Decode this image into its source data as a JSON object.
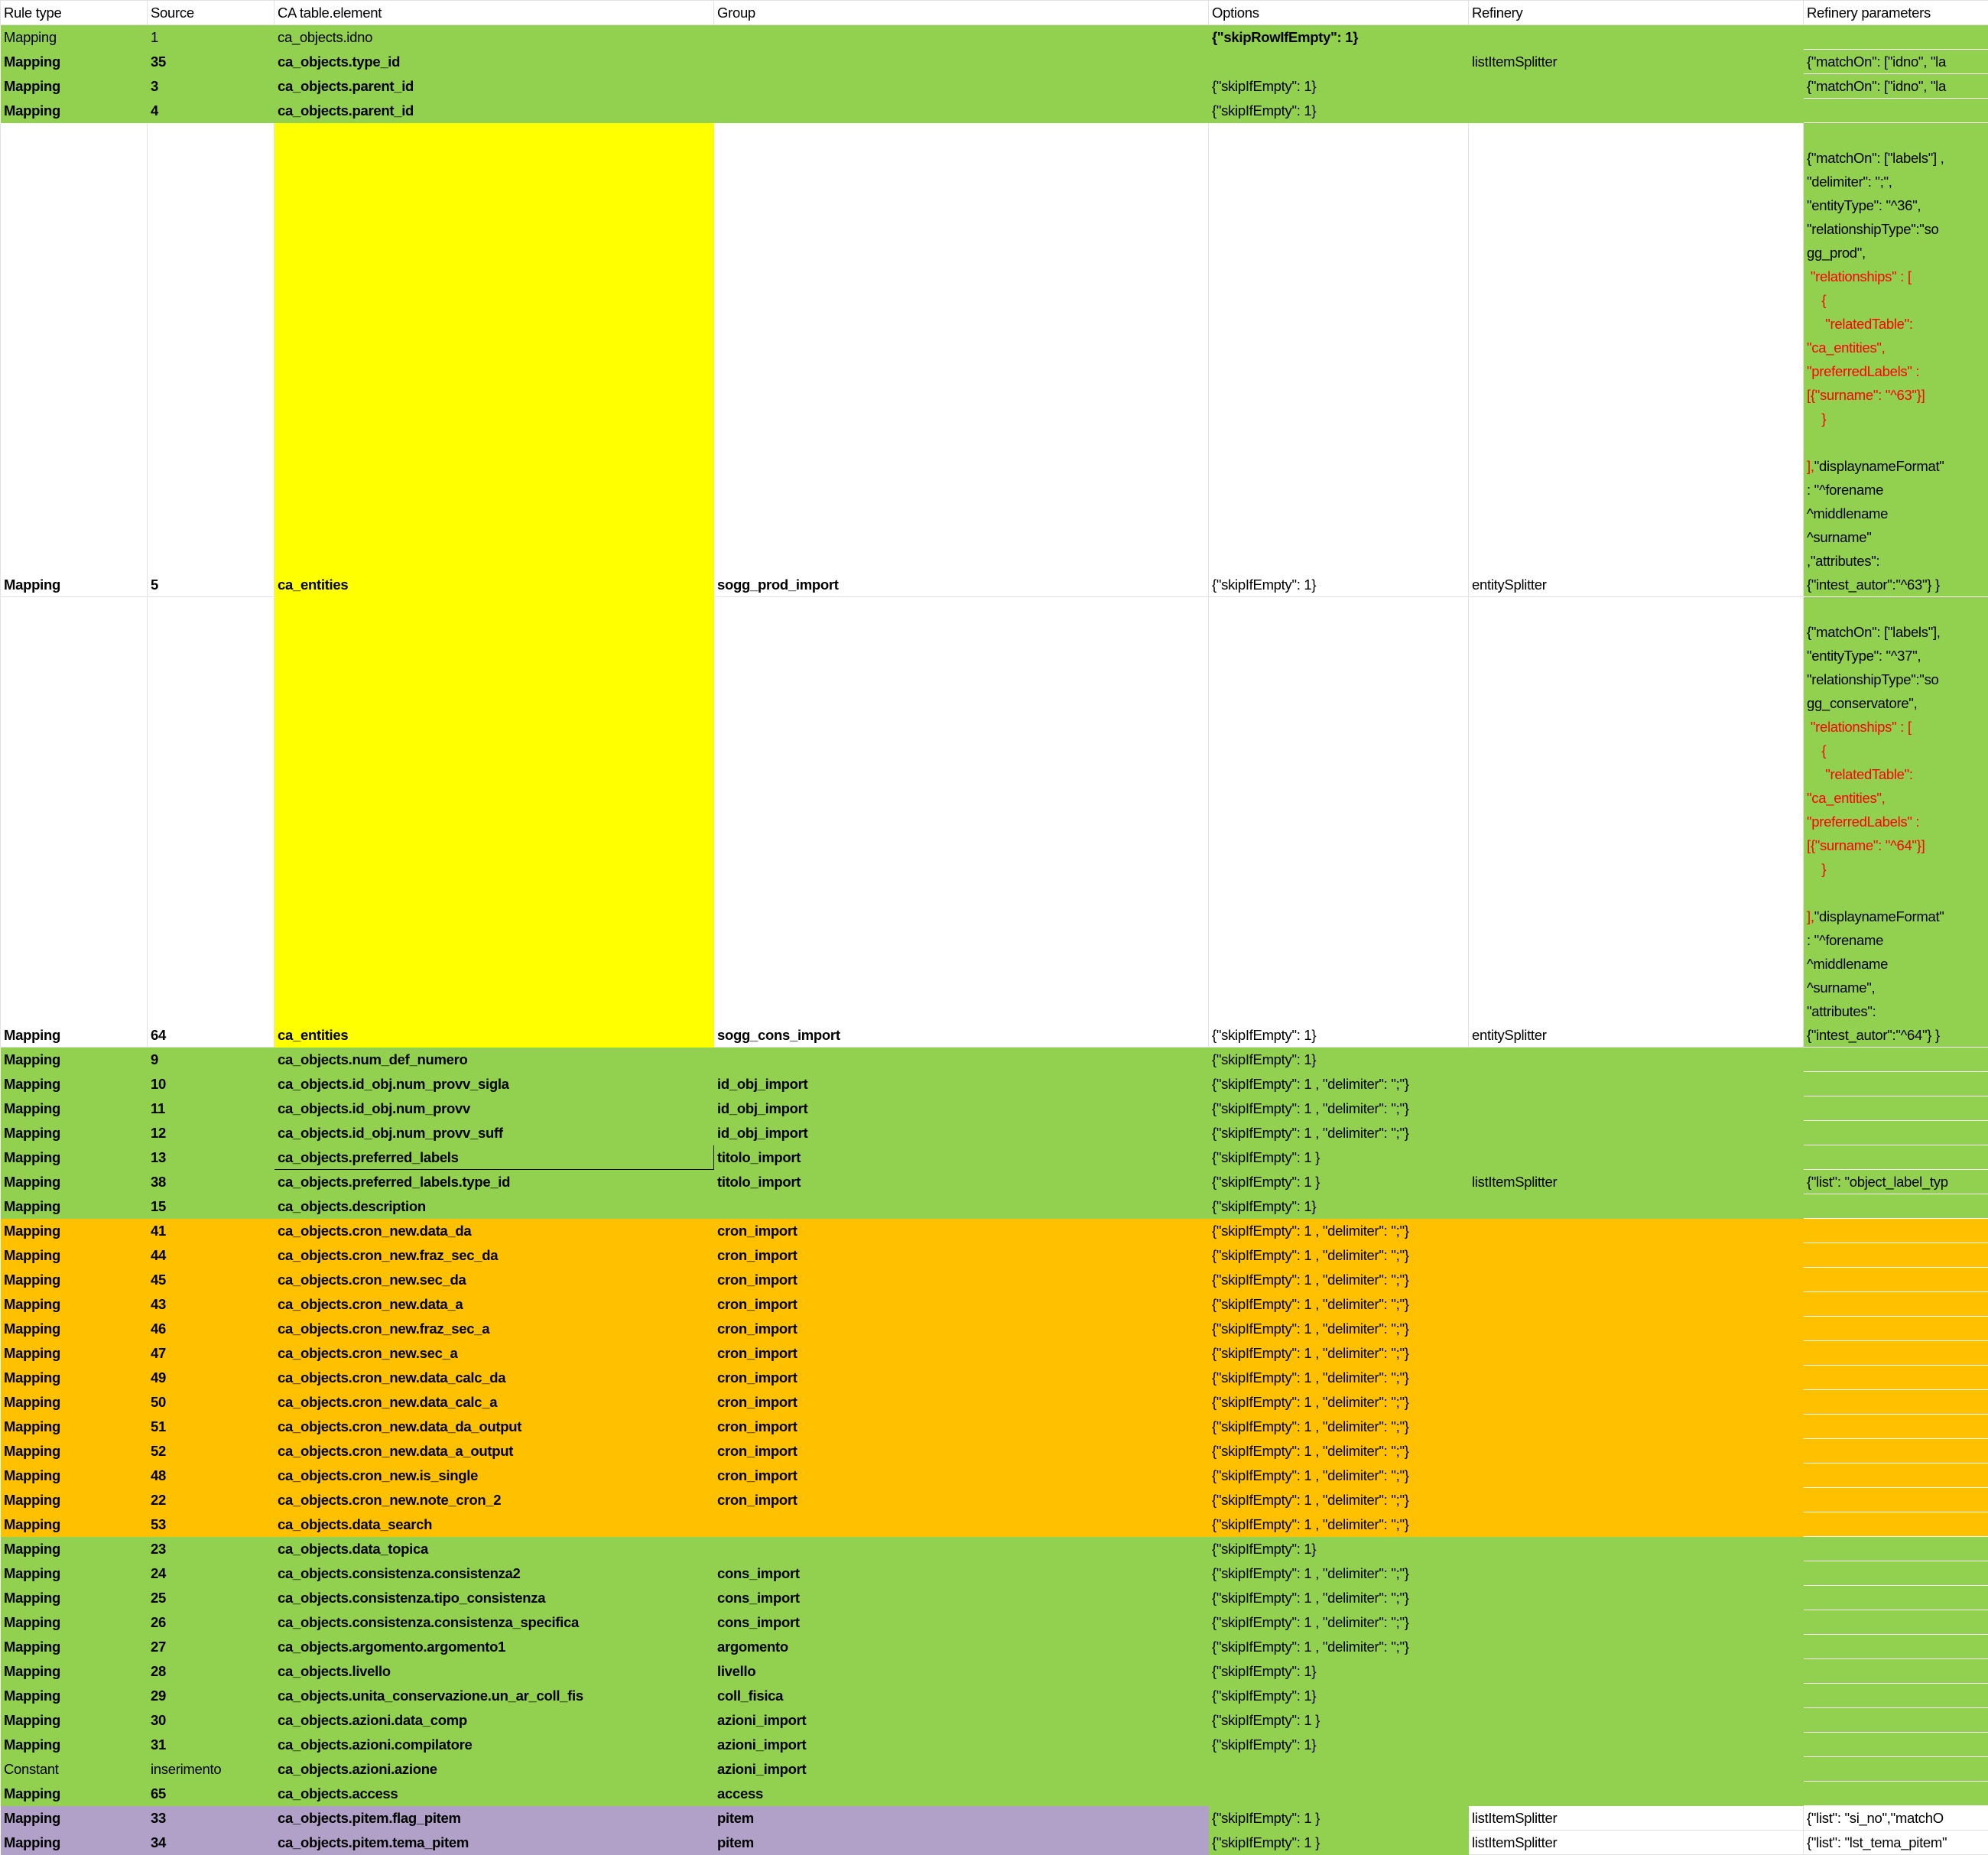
{
  "colors": {
    "green": "#92d050",
    "orange": "#ffc000",
    "yellow": "#ffff00",
    "purple": "#b1a0c7",
    "red_text": "#ff0000"
  },
  "headers": [
    "Rule type",
    "Source",
    "CA table.element",
    "Group",
    "Options",
    "Refinery",
    "Refinery parameters"
  ],
  "rows": [
    {
      "theme": "green",
      "bold": false,
      "opt_bold": true,
      "cells": [
        "Mapping",
        "1",
        "ca_objects.idno",
        "",
        "{\"skipRowIfEmpty\": 1}",
        "",
        ""
      ]
    },
    {
      "theme": "green",
      "bold": true,
      "cells": [
        "Mapping",
        "35",
        "ca_objects.type_id",
        "",
        "",
        "listItemSplitter",
        "{\"matchOn\": [\"idno\", \"la"
      ]
    },
    {
      "theme": "green",
      "bold": true,
      "cells": [
        "Mapping",
        "3",
        "ca_objects.parent_id",
        "",
        "{\"skipIfEmpty\": 1}",
        "",
        "{\"matchOn\": [\"idno\", \"la"
      ]
    },
    {
      "theme": "green",
      "bold": true,
      "cells": [
        "Mapping",
        "4",
        "ca_objects.parent_id",
        "",
        "{\"skipIfEmpty\": 1}",
        "",
        ""
      ]
    },
    {
      "theme": "tall",
      "bold": true,
      "cells": [
        "Mapping",
        "5",
        "ca_entities",
        "sogg_prod_import",
        "{\"skipIfEmpty\": 1}",
        "entitySplitter",
        ""
      ],
      "param_lines": [
        [
          [
            "{\"matchOn\": [\"labels\"] ,",
            ""
          ]
        ],
        [
          [
            "\"delimiter\": \";\",",
            ""
          ]
        ],
        [
          [
            "\"entityType\": \"^36\",",
            ""
          ]
        ],
        [
          [
            "\"relationshipType\":\"so",
            ""
          ]
        ],
        [
          [
            "gg_prod\",",
            ""
          ]
        ],
        [
          [
            " \"relationships\" : [",
            "red"
          ]
        ],
        [
          [
            "    {",
            "red"
          ]
        ],
        [
          [
            "     \"relatedTable\":",
            "red"
          ]
        ],
        [
          [
            "\"ca_entities\",",
            "red"
          ]
        ],
        [
          [
            "\"preferredLabels\" :",
            "red"
          ]
        ],
        [
          [
            "[{\"surname\": \"^63\"}]",
            "red"
          ]
        ],
        [
          [
            "    }",
            "red"
          ]
        ],
        [
          [
            "",
            ""
          ]
        ],
        [
          [
            "],",
            "red"
          ],
          [
            "\"displaynameFormat\"",
            ""
          ]
        ],
        [
          [
            ": \"^forename",
            ""
          ]
        ],
        [
          [
            "^middlename",
            ""
          ]
        ],
        [
          [
            "^surname\"",
            ""
          ]
        ],
        [
          [
            ",\"attributes\":",
            ""
          ]
        ],
        [
          [
            "{\"intest_autor\":\"^63\"} }",
            ""
          ]
        ]
      ]
    },
    {
      "theme": "tall",
      "bold": true,
      "cells": [
        "Mapping",
        "64",
        "ca_entities",
        "sogg_cons_import",
        "{\"skipIfEmpty\": 1}",
        "entitySplitter",
        ""
      ],
      "param_lines": [
        [
          [
            "{\"matchOn\": [\"labels\"],",
            ""
          ]
        ],
        [
          [
            "\"entityType\": \"^37\",",
            ""
          ]
        ],
        [
          [
            "\"relationshipType\":\"so",
            ""
          ]
        ],
        [
          [
            "gg_conservatore\",",
            ""
          ]
        ],
        [
          [
            " \"relationships\" : [",
            "red"
          ]
        ],
        [
          [
            "    {",
            "red"
          ]
        ],
        [
          [
            "     \"relatedTable\":",
            "red"
          ]
        ],
        [
          [
            "\"ca_entities\",",
            "red"
          ]
        ],
        [
          [
            "\"preferredLabels\" :",
            "red"
          ]
        ],
        [
          [
            "[{\"surname\": \"^64\"}]",
            "red"
          ]
        ],
        [
          [
            "    }",
            "red"
          ]
        ],
        [
          [
            "",
            ""
          ]
        ],
        [
          [
            "],",
            "red"
          ],
          [
            "\"displaynameFormat\"",
            ""
          ]
        ],
        [
          [
            ": \"^forename",
            ""
          ]
        ],
        [
          [
            "^middlename",
            ""
          ]
        ],
        [
          [
            "^surname\",",
            ""
          ]
        ],
        [
          [
            "\"attributes\":",
            ""
          ]
        ],
        [
          [
            "{\"intest_autor\":\"^64\"} }",
            ""
          ]
        ]
      ]
    },
    {
      "theme": "green",
      "bold": true,
      "cells": [
        "Mapping",
        "9",
        "ca_objects.num_def_numero",
        "",
        "{\"skipIfEmpty\": 1}",
        "",
        ""
      ]
    },
    {
      "theme": "green",
      "bold": true,
      "cells": [
        "Mapping",
        "10",
        "ca_objects.id_obj.num_provv_sigla",
        "id_obj_import",
        "{\"skipIfEmpty\": 1 , \"delimiter\": \";\"}",
        "",
        ""
      ]
    },
    {
      "theme": "green",
      "bold": true,
      "cells": [
        "Mapping",
        "11",
        "ca_objects.id_obj.num_provv",
        "id_obj_import",
        "{\"skipIfEmpty\": 1 , \"delimiter\": \";\"}",
        "",
        ""
      ]
    },
    {
      "theme": "green",
      "bold": true,
      "cells": [
        "Mapping",
        "12",
        "ca_objects.id_obj.num_provv_suff",
        "id_obj_import",
        "{\"skipIfEmpty\": 1 , \"delimiter\": \";\"}",
        "",
        ""
      ]
    },
    {
      "theme": "green",
      "bold": true,
      "selected_cell": 2,
      "cells": [
        "Mapping",
        "13",
        "ca_objects.preferred_labels",
        "titolo_import",
        "{\"skipIfEmpty\": 1 }",
        "",
        ""
      ]
    },
    {
      "theme": "green",
      "bold": true,
      "cells": [
        "Mapping",
        "38",
        "ca_objects.preferred_labels.type_id",
        "titolo_import",
        "{\"skipIfEmpty\": 1 }",
        "listItemSplitter",
        "{\"list\": \"object_label_typ"
      ]
    },
    {
      "theme": "green",
      "bold": true,
      "cells": [
        "Mapping",
        "15",
        "ca_objects.description",
        "",
        "{\"skipIfEmpty\": 1}",
        "",
        ""
      ]
    },
    {
      "theme": "orange",
      "bold": true,
      "cells": [
        "Mapping",
        "41",
        "ca_objects.cron_new.data_da",
        "cron_import",
        "{\"skipIfEmpty\": 1 , \"delimiter\": \";\"}",
        "",
        ""
      ]
    },
    {
      "theme": "orange",
      "bold": true,
      "cells": [
        "Mapping",
        "44",
        "ca_objects.cron_new.fraz_sec_da",
        "cron_import",
        "{\"skipIfEmpty\": 1 , \"delimiter\": \";\"}",
        "",
        ""
      ]
    },
    {
      "theme": "orange",
      "bold": true,
      "cells": [
        "Mapping",
        "45",
        "ca_objects.cron_new.sec_da",
        "cron_import",
        "{\"skipIfEmpty\": 1 , \"delimiter\": \";\"}",
        "",
        ""
      ]
    },
    {
      "theme": "orange",
      "bold": true,
      "cells": [
        "Mapping",
        "43",
        "ca_objects.cron_new.data_a",
        "cron_import",
        "{\"skipIfEmpty\": 1 , \"delimiter\": \";\"}",
        "",
        ""
      ]
    },
    {
      "theme": "orange",
      "bold": true,
      "cells": [
        "Mapping",
        "46",
        "ca_objects.cron_new.fraz_sec_a",
        "cron_import",
        "{\"skipIfEmpty\": 1 , \"delimiter\": \";\"}",
        "",
        ""
      ]
    },
    {
      "theme": "orange",
      "bold": true,
      "cells": [
        "Mapping",
        "47",
        "ca_objects.cron_new.sec_a",
        "cron_import",
        "{\"skipIfEmpty\": 1 , \"delimiter\": \";\"}",
        "",
        ""
      ]
    },
    {
      "theme": "orange",
      "bold": true,
      "cells": [
        "Mapping",
        "49",
        "ca_objects.cron_new.data_calc_da",
        "cron_import",
        "{\"skipIfEmpty\": 1 , \"delimiter\": \";\"}",
        "",
        ""
      ]
    },
    {
      "theme": "orange",
      "bold": true,
      "cells": [
        "Mapping",
        "50",
        "ca_objects.cron_new.data_calc_a",
        "cron_import",
        "{\"skipIfEmpty\": 1 , \"delimiter\": \";\"}",
        "",
        ""
      ]
    },
    {
      "theme": "orange",
      "bold": true,
      "cells": [
        "Mapping",
        "51",
        "ca_objects.cron_new.data_da_output",
        "cron_import",
        "{\"skipIfEmpty\": 1 , \"delimiter\": \";\"}",
        "",
        ""
      ]
    },
    {
      "theme": "orange",
      "bold": true,
      "cells": [
        "Mapping",
        "52",
        "ca_objects.cron_new.data_a_output",
        "cron_import",
        "{\"skipIfEmpty\": 1 , \"delimiter\": \";\"}",
        "",
        ""
      ]
    },
    {
      "theme": "orange",
      "bold": true,
      "cells": [
        "Mapping",
        "48",
        "ca_objects.cron_new.is_single",
        "cron_import",
        "{\"skipIfEmpty\": 1 , \"delimiter\": \";\"}",
        "",
        ""
      ]
    },
    {
      "theme": "orange",
      "bold": true,
      "cells": [
        "Mapping",
        "22",
        "ca_objects.cron_new.note_cron_2",
        "cron_import",
        "{\"skipIfEmpty\": 1 , \"delimiter\": \";\"}",
        "",
        ""
      ]
    },
    {
      "theme": "orange",
      "bold": true,
      "cells": [
        "Mapping",
        "53",
        "ca_objects.data_search",
        "",
        "{\"skipIfEmpty\": 1 , \"delimiter\": \";\"}",
        "",
        ""
      ]
    },
    {
      "theme": "green",
      "bold": true,
      "cells": [
        "Mapping",
        "23",
        "ca_objects.data_topica",
        "",
        "{\"skipIfEmpty\": 1}",
        "",
        ""
      ]
    },
    {
      "theme": "green",
      "bold": true,
      "cells": [
        "Mapping",
        "24",
        "ca_objects.consistenza.consistenza2",
        "cons_import",
        "{\"skipIfEmpty\": 1 , \"delimiter\": \";\"}",
        "",
        ""
      ]
    },
    {
      "theme": "green",
      "bold": true,
      "cells": [
        "Mapping",
        "25",
        "ca_objects.consistenza.tipo_consistenza",
        "cons_import",
        "{\"skipIfEmpty\": 1 , \"delimiter\": \";\"}",
        "",
        ""
      ]
    },
    {
      "theme": "green",
      "bold": true,
      "cells": [
        "Mapping",
        "26",
        "ca_objects.consistenza.consistenza_specifica",
        "cons_import",
        "{\"skipIfEmpty\": 1 , \"delimiter\": \";\"}",
        "",
        ""
      ]
    },
    {
      "theme": "green",
      "bold": true,
      "cells": [
        "Mapping",
        "27",
        "ca_objects.argomento.argomento1",
        "argomento",
        "{\"skipIfEmpty\": 1 , \"delimiter\": \";\"}",
        "",
        ""
      ]
    },
    {
      "theme": "green",
      "bold": true,
      "cells": [
        "Mapping",
        "28",
        "ca_objects.livello",
        "livello",
        "{\"skipIfEmpty\": 1}",
        "",
        ""
      ]
    },
    {
      "theme": "green",
      "bold": true,
      "cells": [
        "Mapping",
        "29",
        "ca_objects.unita_conservazione.un_ar_coll_fis",
        "coll_fisica",
        "{\"skipIfEmpty\": 1}",
        "",
        ""
      ]
    },
    {
      "theme": "green",
      "bold": true,
      "cells": [
        "Mapping",
        "30",
        "ca_objects.azioni.data_comp",
        "azioni_import",
        "{\"skipIfEmpty\": 1 }",
        "",
        ""
      ]
    },
    {
      "theme": "green",
      "bold": true,
      "cells": [
        "Mapping",
        "31",
        "ca_objects.azioni.compilatore",
        "azioni_import",
        "{\"skipIfEmpty\": 1}",
        "",
        ""
      ]
    },
    {
      "theme": "green",
      "bold": true,
      "cells": [
        "Constant",
        "inserimento",
        "ca_objects.azioni.azione",
        "azioni_import",
        "",
        "",
        ""
      ]
    },
    {
      "theme": "green",
      "bold": true,
      "cells": [
        "Mapping",
        "65",
        "ca_objects.access",
        "access",
        "",
        "",
        ""
      ]
    },
    {
      "theme": "pitem",
      "bold": true,
      "cells": [
        "Mapping",
        "33",
        "ca_objects.pitem.flag_pitem",
        "pitem",
        "{\"skipIfEmpty\": 1 }",
        "listItemSplitter",
        "{\"list\": \"si_no\",\"matchO"
      ]
    },
    {
      "theme": "pitem",
      "bold": true,
      "cells": [
        "Mapping",
        "34",
        "ca_objects.pitem.tema_pitem",
        "pitem",
        "{\"skipIfEmpty\": 1 }",
        "listItemSplitter",
        "{\"list\": \"lst_tema_pitem\""
      ]
    }
  ]
}
